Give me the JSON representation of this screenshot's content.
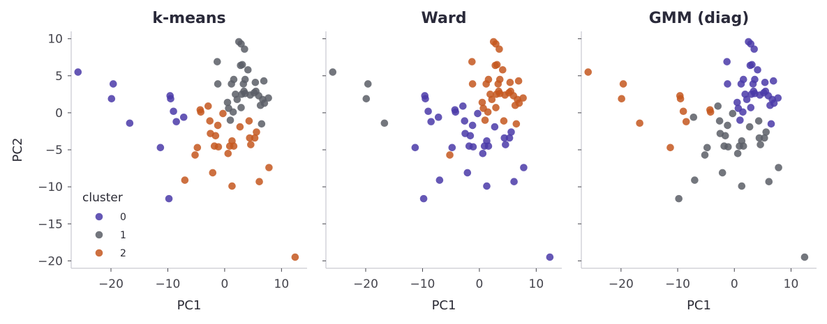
{
  "chart_data": {
    "type": "scatter",
    "shared_ylabel": "PC2",
    "xlim": [
      -27,
      14.5
    ],
    "ylim": [
      -21,
      11
    ],
    "x_ticks": [
      -20,
      -10,
      0,
      10
    ],
    "y_ticks": [
      -20,
      -15,
      -10,
      -5,
      0,
      5,
      10
    ],
    "x_tick_labels": [
      "−20",
      "−10",
      "0",
      "10"
    ],
    "y_tick_labels": [
      "−20",
      "−15",
      "−10",
      "−5",
      "0",
      "5",
      "10"
    ],
    "grid": false,
    "legend": {
      "title": "cluster",
      "placement": "lower-left",
      "panel": 0,
      "entries": [
        "0",
        "1",
        "2"
      ]
    },
    "cluster_colors": {
      "0": "#4a3aa8",
      "1": "#5a5e66",
      "2": "#c4571e"
    },
    "points": [
      [
        -25.8,
        5.5
      ],
      [
        -19.6,
        3.9
      ],
      [
        -19.9,
        1.9
      ],
      [
        -16.7,
        -1.4
      ],
      [
        -11.3,
        -4.7
      ],
      [
        -9.8,
        -11.6
      ],
      [
        -9.6,
        2.3
      ],
      [
        -9.5,
        1.9
      ],
      [
        -9.0,
        0.2
      ],
      [
        -8.5,
        -1.2
      ],
      [
        -7.2,
        -0.6
      ],
      [
        -7.0,
        -9.1
      ],
      [
        -5.2,
        -5.7
      ],
      [
        -4.8,
        -4.7
      ],
      [
        -4.3,
        0.4
      ],
      [
        -4.2,
        0.1
      ],
      [
        -2.9,
        0.9
      ],
      [
        -2.6,
        -1.1
      ],
      [
        -2.5,
        -2.8
      ],
      [
        -2.1,
        -8.1
      ],
      [
        -1.8,
        -4.5
      ],
      [
        -1.6,
        -3.1
      ],
      [
        -1.3,
        6.9
      ],
      [
        -1.2,
        3.9
      ],
      [
        -1.2,
        -1.7
      ],
      [
        -1.1,
        -4.6
      ],
      [
        -0.3,
        -0.1
      ],
      [
        0.5,
        1.4
      ],
      [
        0.6,
        -5.5
      ],
      [
        0.7,
        0.6
      ],
      [
        0.9,
        -4.5
      ],
      [
        1.0,
        -1.0
      ],
      [
        1.2,
        3.9
      ],
      [
        1.3,
        -3.8
      ],
      [
        1.3,
        -9.9
      ],
      [
        1.5,
        0.1
      ],
      [
        1.6,
        4.5
      ],
      [
        1.6,
        -4.5
      ],
      [
        1.9,
        2.5
      ],
      [
        2.2,
        1.8
      ],
      [
        2.5,
        9.6
      ],
      [
        2.7,
        -1.9
      ],
      [
        2.8,
        6.4
      ],
      [
        2.9,
        9.3
      ],
      [
        2.9,
        0.7
      ],
      [
        3.0,
        2.5
      ],
      [
        3.1,
        6.5
      ],
      [
        3.3,
        3.9
      ],
      [
        3.4,
        2.9
      ],
      [
        3.5,
        8.6
      ],
      [
        3.6,
        4.5
      ],
      [
        3.6,
        2.6
      ],
      [
        4.1,
        5.8
      ],
      [
        4.3,
        -1.1
      ],
      [
        4.4,
        -3.4
      ],
      [
        4.5,
        2.4
      ],
      [
        4.6,
        -4.3
      ],
      [
        5.2,
        2.7
      ],
      [
        5.3,
        -3.4
      ],
      [
        5.4,
        4.1
      ],
      [
        5.5,
        2.9
      ],
      [
        5.6,
        -2.6
      ],
      [
        6.0,
        2.3
      ],
      [
        6.1,
        -9.3
      ],
      [
        6.3,
        1.0
      ],
      [
        6.5,
        -1.5
      ],
      [
        6.7,
        1.8
      ],
      [
        6.9,
        4.3
      ],
      [
        7.0,
        1.3
      ],
      [
        7.7,
        2.0
      ],
      [
        7.8,
        -7.4
      ],
      [
        12.4,
        -19.5
      ]
    ],
    "panels": [
      {
        "title": "k-means",
        "xlabel": "PC1",
        "labels": [
          0,
          0,
          0,
          0,
          0,
          0,
          0,
          0,
          0,
          0,
          0,
          2,
          2,
          2,
          2,
          2,
          2,
          2,
          2,
          2,
          2,
          2,
          1,
          1,
          2,
          2,
          2,
          1,
          2,
          1,
          2,
          1,
          1,
          2,
          2,
          1,
          1,
          2,
          1,
          1,
          1,
          2,
          1,
          1,
          1,
          1,
          1,
          1,
          1,
          1,
          1,
          1,
          1,
          2,
          2,
          1,
          2,
          1,
          2,
          1,
          1,
          2,
          1,
          2,
          1,
          1,
          1,
          1,
          1,
          1,
          2,
          2
        ]
      },
      {
        "title": "Ward",
        "xlabel": "PC1",
        "labels": [
          1,
          1,
          1,
          1,
          0,
          0,
          0,
          0,
          0,
          0,
          0,
          0,
          2,
          0,
          0,
          0,
          0,
          0,
          0,
          0,
          0,
          0,
          2,
          2,
          0,
          0,
          0,
          2,
          0,
          2,
          0,
          2,
          2,
          0,
          0,
          2,
          2,
          0,
          2,
          2,
          2,
          0,
          2,
          2,
          2,
          2,
          2,
          2,
          2,
          2,
          2,
          2,
          2,
          2,
          0,
          2,
          0,
          2,
          0,
          2,
          2,
          0,
          2,
          0,
          2,
          2,
          2,
          2,
          2,
          2,
          0,
          0
        ]
      },
      {
        "title": "GMM (diag)",
        "xlabel": "PC1",
        "labels": [
          2,
          2,
          2,
          2,
          2,
          1,
          2,
          2,
          2,
          2,
          1,
          1,
          1,
          1,
          2,
          2,
          1,
          1,
          1,
          1,
          1,
          1,
          0,
          0,
          1,
          1,
          1,
          0,
          1,
          0,
          1,
          0,
          0,
          1,
          1,
          0,
          0,
          1,
          0,
          0,
          0,
          1,
          0,
          0,
          0,
          0,
          0,
          0,
          0,
          0,
          0,
          0,
          0,
          1,
          1,
          0,
          1,
          0,
          1,
          0,
          0,
          1,
          0,
          1,
          0,
          0,
          0,
          0,
          0,
          0,
          1,
          1
        ]
      }
    ]
  }
}
